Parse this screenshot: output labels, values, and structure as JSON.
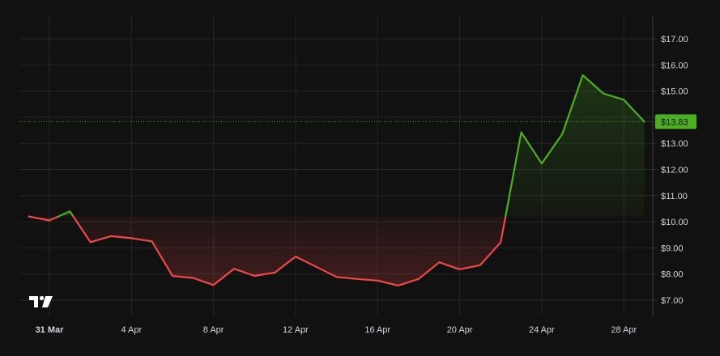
{
  "chart_data": {
    "type": "area",
    "title": "",
    "xlabel": "",
    "ylabel": "",
    "baseline": 10.2,
    "ylim": [
      6.4,
      17.9
    ],
    "y_ticks": [
      "$7.00",
      "$8.00",
      "$9.00",
      "$10.00",
      "$11.00",
      "$12.00",
      "$13.00",
      "$14.00",
      "$15.00",
      "$16.00",
      "$17.00"
    ],
    "y_tick_values": [
      7,
      8,
      9,
      10,
      11,
      12,
      13,
      14,
      15,
      16,
      17
    ],
    "x_ticks": [
      {
        "label": "31 Mar",
        "date": "2025-03-31",
        "bold": true
      },
      {
        "label": "4 Apr",
        "date": "2025-04-04",
        "bold": false
      },
      {
        "label": "8 Apr",
        "date": "2025-04-08",
        "bold": false
      },
      {
        "label": "12 Apr",
        "date": "2025-04-12",
        "bold": false
      },
      {
        "label": "16 Apr",
        "date": "2025-04-16",
        "bold": false
      },
      {
        "label": "20 Apr",
        "date": "2025-04-20",
        "bold": false
      },
      {
        "label": "24 Apr",
        "date": "2025-04-24",
        "bold": false
      },
      {
        "label": "28 Apr",
        "date": "2025-04-28",
        "bold": false
      }
    ],
    "series": [
      {
        "x": [
          "2025-03-30",
          "2025-03-31",
          "2025-04-01",
          "2025-04-02",
          "2025-04-03",
          "2025-04-04",
          "2025-04-05",
          "2025-04-06",
          "2025-04-07",
          "2025-04-08",
          "2025-04-09",
          "2025-04-10",
          "2025-04-11",
          "2025-04-12",
          "2025-04-13",
          "2025-04-14",
          "2025-04-15",
          "2025-04-16",
          "2025-04-17",
          "2025-04-18",
          "2025-04-19",
          "2025-04-20",
          "2025-04-21",
          "2025-04-22",
          "2025-04-23",
          "2025-04-24",
          "2025-04-25",
          "2025-04-26",
          "2025-04-27",
          "2025-04-28",
          "2025-04-29"
        ],
        "values": [
          10.2,
          10.05,
          10.4,
          9.22,
          9.45,
          9.37,
          9.25,
          7.93,
          7.85,
          7.58,
          8.2,
          7.93,
          8.06,
          8.67,
          8.28,
          7.89,
          7.81,
          7.75,
          7.56,
          7.81,
          8.45,
          8.18,
          8.34,
          9.22,
          13.42,
          12.23,
          13.36,
          15.61,
          14.91,
          14.67,
          13.83
        ]
      }
    ],
    "colors": {
      "up": "#4caf22",
      "down": "#f04848",
      "grid": "#262626",
      "text": "#d1d4dc",
      "background": "#111111"
    },
    "current_price": {
      "value": 13.83,
      "label": "$13.83"
    },
    "grid": true,
    "legend": "none",
    "logo_icon": "tradingview-logo-icon"
  }
}
